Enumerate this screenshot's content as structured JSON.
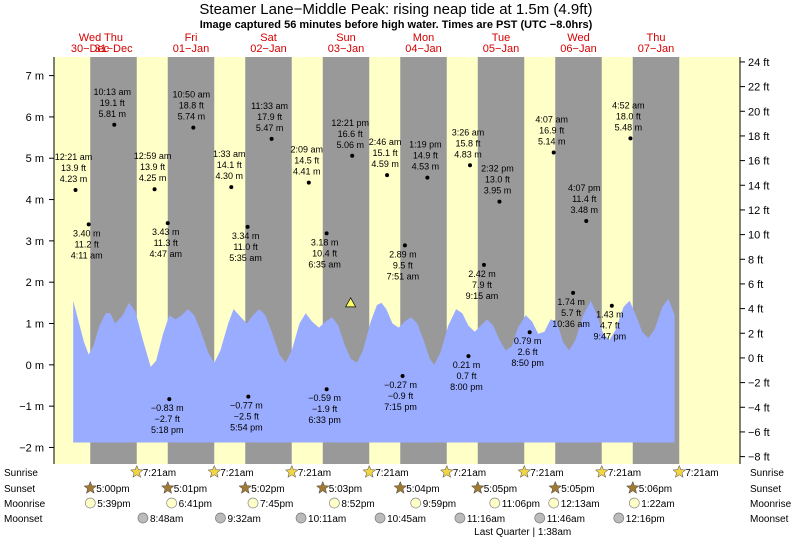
{
  "title": "Steamer Lane−Middle Peak: rising  neap tide at 1.5m (4.9ft)",
  "subtitle": "Image captured 56 minutes before high water. Times are PST (UTC −8.0hrs)",
  "days": [
    {
      "dow": "Wed",
      "date": "30−Dec"
    },
    {
      "dow": "Thu",
      "date": "31−Dec"
    },
    {
      "dow": "Fri",
      "date": "01−Jan"
    },
    {
      "dow": "Sat",
      "date": "02−Jan"
    },
    {
      "dow": "Sun",
      "date": "03−Jan"
    },
    {
      "dow": "Mon",
      "date": "04−Jan"
    },
    {
      "dow": "Tue",
      "date": "05−Jan"
    },
    {
      "dow": "Wed",
      "date": "06−Jan"
    },
    {
      "dow": "Thu",
      "date": "07−Jan"
    }
  ],
  "colors": {
    "day": "#ffffc8",
    "night": "#999999",
    "water": "#9aacff",
    "text_red": "#d40000"
  },
  "chart_data": {
    "type": "area",
    "x_unit": "days from Wed 30-Dec 00:00 PST",
    "y_unit_left": "m",
    "y_unit_right": "ft",
    "ylim_m": [
      -2.4,
      7.45
    ],
    "ylim_ft": [
      -8.6,
      24.4
    ],
    "left_ticks": [
      "−2 m",
      "−1 m",
      "0 m",
      "1 m",
      "2 m",
      "3 m",
      "4 m",
      "5 m",
      "6 m",
      "7 m"
    ],
    "left_tick_values": [
      -2,
      -1,
      0,
      1,
      2,
      3,
      4,
      5,
      6,
      7
    ],
    "right_ticks": [
      "−8 ft",
      "−6 ft",
      "−4 ft",
      "−2 ft",
      "0 ft",
      "2 ft",
      "4 ft",
      "6 ft",
      "8 ft",
      "10 ft",
      "12 ft",
      "14 ft",
      "16 ft",
      "18 ft",
      "20 ft",
      "22 ft",
      "24 ft"
    ],
    "right_tick_values": [
      -8,
      -6,
      -4,
      -2,
      0,
      2,
      4,
      6,
      8,
      10,
      12,
      14,
      16,
      18,
      20,
      22,
      24
    ],
    "data_start": 0.48,
    "data_end": 8.24,
    "tides": [
      {
        "t": 0.08,
        "h": 0.6
      },
      {
        "t": 0.51,
        "h": 4.23,
        "label": [
          "12:21 am",
          "13.9 ft",
          "4.23 m"
        ]
      },
      {
        "t": 0.68,
        "h": 3.4,
        "label": [
          "3.40 m",
          "11.2 ft",
          "4:11 am"
        ]
      },
      {
        "t": 1.01,
        "h": 5.81,
        "label": [
          "10:13 am",
          "19.1 ft",
          "5.81 m"
        ]
      },
      {
        "t": 1.72,
        "h": -0.83,
        "label": [
          "−0.83 m",
          "−2.7 ft",
          "5:18 pm"
        ]
      },
      {
        "t": 1.53,
        "h": 4.25,
        "label": [
          "12:59 am",
          "13.9 ft",
          "4.25 m"
        ]
      },
      {
        "t": 1.7,
        "h": 3.43,
        "label": [
          "3.43 m",
          "11.3 ft",
          "4:47 am"
        ]
      },
      {
        "t": 2.03,
        "h": 5.74,
        "label": [
          "10:50 am",
          "18.8 ft",
          "5.74 m"
        ]
      },
      {
        "t": 2.74,
        "h": -0.77,
        "label": [
          "−0.77 m",
          "−2.5 ft",
          "5:54 pm"
        ]
      },
      {
        "t": 2.52,
        "h": 4.3,
        "label": [
          "1:33 am",
          "14.1 ft",
          "4.30 m"
        ]
      },
      {
        "t": 2.73,
        "h": 3.34,
        "label": [
          "3.34 m",
          "11.0 ft",
          "5:35 am"
        ]
      },
      {
        "t": 3.04,
        "h": 5.47,
        "label": [
          "11:33 am",
          "17.9 ft",
          "5.47 m"
        ]
      },
      {
        "t": 3.75,
        "h": -0.59,
        "label": [
          "−0.59 m",
          "−1.9 ft",
          "6:33 pm"
        ]
      },
      {
        "t": 3.52,
        "h": 4.41,
        "label": [
          "2:09 am",
          "14.5 ft",
          "4.41 m"
        ]
      },
      {
        "t": 3.75,
        "h": 3.18,
        "label": [
          "3.18 m",
          "10.4 ft",
          "6:35 am"
        ]
      },
      {
        "t": 4.08,
        "h": 5.06,
        "label": [
          "12:21 pm",
          "16.6 ft",
          "5.06 m"
        ]
      },
      {
        "t": 4.73,
        "h": -0.27,
        "label": [
          "−0.27 m",
          "−0.9 ft",
          "7:15 pm"
        ]
      },
      {
        "t": 4.53,
        "h": 4.59,
        "label": [
          "2:46 am",
          "15.1 ft",
          "4.59 m"
        ]
      },
      {
        "t": 4.76,
        "h": 2.89,
        "label": [
          "2.89 m",
          "9.5 ft",
          "7:51 am"
        ]
      },
      {
        "t": 5.05,
        "h": 4.53,
        "label": [
          "1:19 pm",
          "14.9 ft",
          "4.53 m"
        ]
      },
      {
        "t": 5.58,
        "h": 0.21,
        "label": [
          "0.21 m",
          "0.7 ft",
          "8:00 pm"
        ]
      },
      {
        "t": 5.6,
        "h": 4.83,
        "label": [
          "3:26 am",
          "15.8 ft",
          "4.83 m"
        ]
      },
      {
        "t": 5.78,
        "h": 2.42,
        "label": [
          "2.42 m",
          "7.9 ft",
          "9:15 am"
        ]
      },
      {
        "t": 5.98,
        "h": 3.95,
        "label": [
          "2:32 pm",
          "13.0 ft",
          "3.95 m"
        ]
      },
      {
        "t": 6.37,
        "h": 0.79,
        "label": [
          "0.79 m",
          "2.6 ft",
          "8:50 pm"
        ]
      },
      {
        "t": 6.68,
        "h": 5.14,
        "label": [
          "4:07 am",
          "16.9 ft",
          "5.14 m"
        ]
      },
      {
        "t": 6.93,
        "h": 1.74,
        "label": [
          "1.74 m",
          "5.7 ft",
          "10:36 am"
        ]
      },
      {
        "t": 7.1,
        "h": 3.48,
        "label": [
          "4:07 pm",
          "11.4 ft",
          "3.48 m"
        ]
      },
      {
        "t": 7.43,
        "h": 1.43,
        "label": [
          "1.43 m",
          "4.7 ft",
          "9:47 pm"
        ]
      },
      {
        "t": 7.67,
        "h": 5.48,
        "label": [
          "4:52 am",
          "18.0 ft",
          "5.48 m"
        ]
      }
    ],
    "curve": [
      {
        "t": 0.48,
        "h": 1.55
      },
      {
        "t": 0.55,
        "h": 1.05
      },
      {
        "t": 0.62,
        "h": 0.55
      },
      {
        "t": 0.68,
        "h": 0.25
      },
      {
        "t": 0.74,
        "h": 0.45
      },
      {
        "t": 0.82,
        "h": 0.95
      },
      {
        "t": 0.9,
        "h": 1.25
      },
      {
        "t": 0.96,
        "h": 1.25
      },
      {
        "t": 1.02,
        "h": 1.0
      },
      {
        "t": 1.12,
        "h": 1.2
      },
      {
        "t": 1.2,
        "h": 1.5
      },
      {
        "t": 1.28,
        "h": 1.3
      },
      {
        "t": 1.38,
        "h": 0.6
      },
      {
        "t": 1.48,
        "h": -0.05
      },
      {
        "t": 1.55,
        "h": 0.1
      },
      {
        "t": 1.64,
        "h": 0.75
      },
      {
        "t": 1.72,
        "h": 1.2
      },
      {
        "t": 1.8,
        "h": 1.1
      },
      {
        "t": 1.88,
        "h": 1.2
      },
      {
        "t": 1.96,
        "h": 1.35
      },
      {
        "t": 2.04,
        "h": 1.2
      },
      {
        "t": 2.12,
        "h": 0.85
      },
      {
        "t": 2.22,
        "h": 0.3
      },
      {
        "t": 2.3,
        "h": 0.05
      },
      {
        "t": 2.38,
        "h": 0.35
      },
      {
        "t": 2.48,
        "h": 1.0
      },
      {
        "t": 2.55,
        "h": 1.35
      },
      {
        "t": 2.62,
        "h": 1.2
      },
      {
        "t": 2.72,
        "h": 1.0
      },
      {
        "t": 2.8,
        "h": 1.2
      },
      {
        "t": 2.88,
        "h": 1.35
      },
      {
        "t": 2.96,
        "h": 1.2
      },
      {
        "t": 3.05,
        "h": 0.75
      },
      {
        "t": 3.14,
        "h": 0.25
      },
      {
        "t": 3.22,
        "h": 0.05
      },
      {
        "t": 3.3,
        "h": 0.35
      },
      {
        "t": 3.4,
        "h": 1.0
      },
      {
        "t": 3.48,
        "h": 1.25
      },
      {
        "t": 3.56,
        "h": 1.05
      },
      {
        "t": 3.65,
        "h": 0.9
      },
      {
        "t": 3.74,
        "h": 1.05
      },
      {
        "t": 3.82,
        "h": 1.15
      },
      {
        "t": 3.9,
        "h": 0.95
      },
      {
        "t": 3.98,
        "h": 0.5
      },
      {
        "t": 4.06,
        "h": 0.15
      },
      {
        "t": 4.14,
        "h": 0.05
      },
      {
        "t": 4.22,
        "h": 0.35
      },
      {
        "t": 4.32,
        "h": 1.05
      },
      {
        "t": 4.4,
        "h": 1.45
      },
      {
        "t": 4.46,
        "h": 1.5
      },
      {
        "t": 4.52,
        "h": 1.35
      },
      {
        "t": 4.6,
        "h": 1.0
      },
      {
        "t": 4.68,
        "h": 0.9
      },
      {
        "t": 4.76,
        "h": 1.05
      },
      {
        "t": 4.84,
        "h": 1.15
      },
      {
        "t": 4.92,
        "h": 1.0
      },
      {
        "t": 5.0,
        "h": 0.6
      },
      {
        "t": 5.08,
        "h": 0.15
      },
      {
        "t": 5.14,
        "h": 0.0
      },
      {
        "t": 5.22,
        "h": 0.3
      },
      {
        "t": 5.32,
        "h": 0.95
      },
      {
        "t": 5.42,
        "h": 1.35
      },
      {
        "t": 5.5,
        "h": 1.25
      },
      {
        "t": 5.58,
        "h": 0.95
      },
      {
        "t": 5.66,
        "h": 0.8
      },
      {
        "t": 5.74,
        "h": 0.95
      },
      {
        "t": 5.82,
        "h": 1.1
      },
      {
        "t": 5.9,
        "h": 0.95
      },
      {
        "t": 5.98,
        "h": 0.6
      },
      {
        "t": 6.06,
        "h": 0.35
      },
      {
        "t": 6.14,
        "h": 0.45
      },
      {
        "t": 6.22,
        "h": 0.9
      },
      {
        "t": 6.32,
        "h": 1.2
      },
      {
        "t": 6.4,
        "h": 1.05
      },
      {
        "t": 6.48,
        "h": 0.75
      },
      {
        "t": 6.56,
        "h": 0.8
      },
      {
        "t": 6.64,
        "h": 1.1
      },
      {
        "t": 6.72,
        "h": 1.05
      },
      {
        "t": 6.8,
        "h": 0.55
      },
      {
        "t": 6.88,
        "h": 0.35
      },
      {
        "t": 6.96,
        "h": 0.6
      },
      {
        "t": 7.06,
        "h": 1.2
      },
      {
        "t": 7.16,
        "h": 1.55
      },
      {
        "t": 7.24,
        "h": 1.2
      },
      {
        "t": 7.32,
        "h": 0.75
      },
      {
        "t": 7.4,
        "h": 0.6
      },
      {
        "t": 7.48,
        "h": 0.85
      },
      {
        "t": 7.58,
        "h": 1.4
      },
      {
        "t": 7.66,
        "h": 1.55
      },
      {
        "t": 7.74,
        "h": 1.2
      },
      {
        "t": 7.82,
        "h": 0.8
      },
      {
        "t": 7.9,
        "h": 0.65
      },
      {
        "t": 7.98,
        "h": 0.85
      },
      {
        "t": 8.08,
        "h": 1.4
      },
      {
        "t": 8.16,
        "h": 1.6
      },
      {
        "t": 8.24,
        "h": 1.2
      }
    ],
    "now": {
      "t": 4.06,
      "h": 1.5
    },
    "bottom_fill_m": -1.88
  },
  "almanac": {
    "row_labels": [
      "Sunrise",
      "Sunset",
      "Moonrise",
      "Moonset"
    ],
    "sunrise": [
      {
        "t": 1.3,
        "text": "7:21am"
      },
      {
        "t": 2.3,
        "text": "7:21am"
      },
      {
        "t": 3.3,
        "text": "7:21am"
      },
      {
        "t": 4.3,
        "text": "7:21am"
      },
      {
        "t": 5.3,
        "text": "7:21am"
      },
      {
        "t": 6.3,
        "text": "7:21am"
      },
      {
        "t": 7.3,
        "text": "7:21am"
      },
      {
        "t": 8.3,
        "text": "7:21am"
      }
    ],
    "sunset": [
      {
        "t": 0.7,
        "text": "5:00pm"
      },
      {
        "t": 1.7,
        "text": "5:01pm"
      },
      {
        "t": 2.7,
        "text": "5:02pm"
      },
      {
        "t": 3.7,
        "text": "5:03pm"
      },
      {
        "t": 4.7,
        "text": "5:04pm"
      },
      {
        "t": 5.7,
        "text": "5:05pm"
      },
      {
        "t": 6.7,
        "text": "5:05pm"
      },
      {
        "t": 7.7,
        "text": "5:06pm"
      }
    ],
    "moonrise": [
      {
        "t": 0.7,
        "text": "5:39pm"
      },
      {
        "t": 1.75,
        "text": "6:41pm"
      },
      {
        "t": 2.8,
        "text": "7:45pm"
      },
      {
        "t": 3.85,
        "text": "8:52pm"
      },
      {
        "t": 4.9,
        "text": "9:59pm"
      },
      {
        "t": 5.92,
        "text": "11:06pm"
      },
      {
        "t": 6.68,
        "text": "12:13am"
      },
      {
        "t": 7.72,
        "text": "1:22am"
      }
    ],
    "moonset": [
      {
        "t": 1.38,
        "text": "8:48am"
      },
      {
        "t": 2.38,
        "text": "9:32am"
      },
      {
        "t": 3.42,
        "text": "10:11am"
      },
      {
        "t": 4.44,
        "text": "10:45am"
      },
      {
        "t": 5.47,
        "text": "11:16am"
      },
      {
        "t": 6.5,
        "text": "11:46am"
      },
      {
        "t": 7.52,
        "text": "12:16pm"
      }
    ],
    "moon_phase": {
      "t": 6.28,
      "text": "Last Quarter | 1:38am"
    }
  }
}
